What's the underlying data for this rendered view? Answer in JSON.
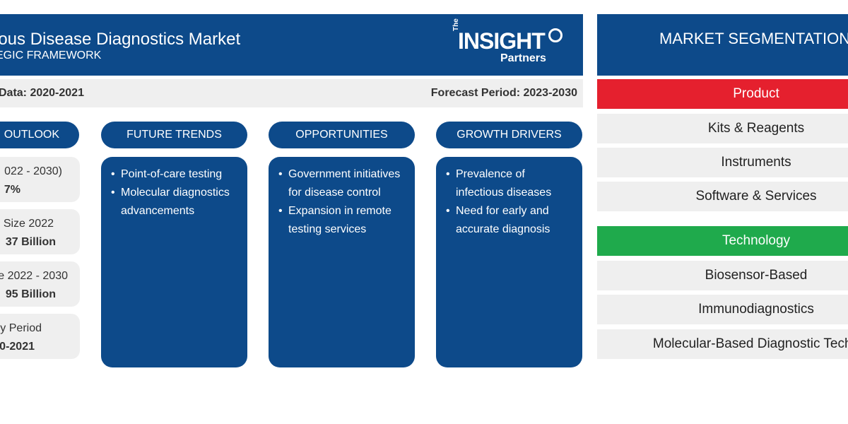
{
  "header": {
    "title": "ious Disease Diagnostics Market",
    "subtitle": "EGIC FRAMEWORK",
    "logo": {
      "the": "The",
      "main": "INSIGHT",
      "sub": "Partners"
    }
  },
  "periods": {
    "historical": "Data: 2020-2021",
    "forecast": "Forecast Period: 2023-2030"
  },
  "columns": {
    "outlook_label": "OUTLOOK",
    "future_trends": {
      "label": "FUTURE TRENDS",
      "items": [
        "Point-of-care testing",
        "Molecular diagnostics advancements"
      ]
    },
    "opportunities": {
      "label": "OPPORTUNITIES",
      "items": [
        "Government initiatives for disease control",
        "Expansion in remote testing services"
      ]
    },
    "growth_drivers": {
      "label": "GROWTH DRIVERS",
      "items": [
        "Prevalence of infectious diseases",
        "Need for early and accurate diagnosis"
      ]
    }
  },
  "stats": [
    {
      "label": "022 - 2030)",
      "value": "7%"
    },
    {
      "label": "Size 2022",
      "value": "37 Billion"
    },
    {
      "label": "e 2022 - 2030",
      "value": "95 Billion"
    },
    {
      "label": "y Period",
      "value": "0-2021"
    }
  ],
  "segmentation": {
    "title": "MARKET SEGMENTATION",
    "product": {
      "label": "Product",
      "color": "#e5202e",
      "items": [
        "Kits & Reagents",
        "Instruments",
        "Software & Services"
      ]
    },
    "technology": {
      "label": "Technology",
      "color": "#1faa4c",
      "items": [
        "Biosensor-Based",
        "Immunodiagnostics",
        "Molecular-Based Diagnostic Techn"
      ]
    }
  },
  "colors": {
    "navy": "#0d4a8a",
    "panel_gray": "#efefef"
  }
}
